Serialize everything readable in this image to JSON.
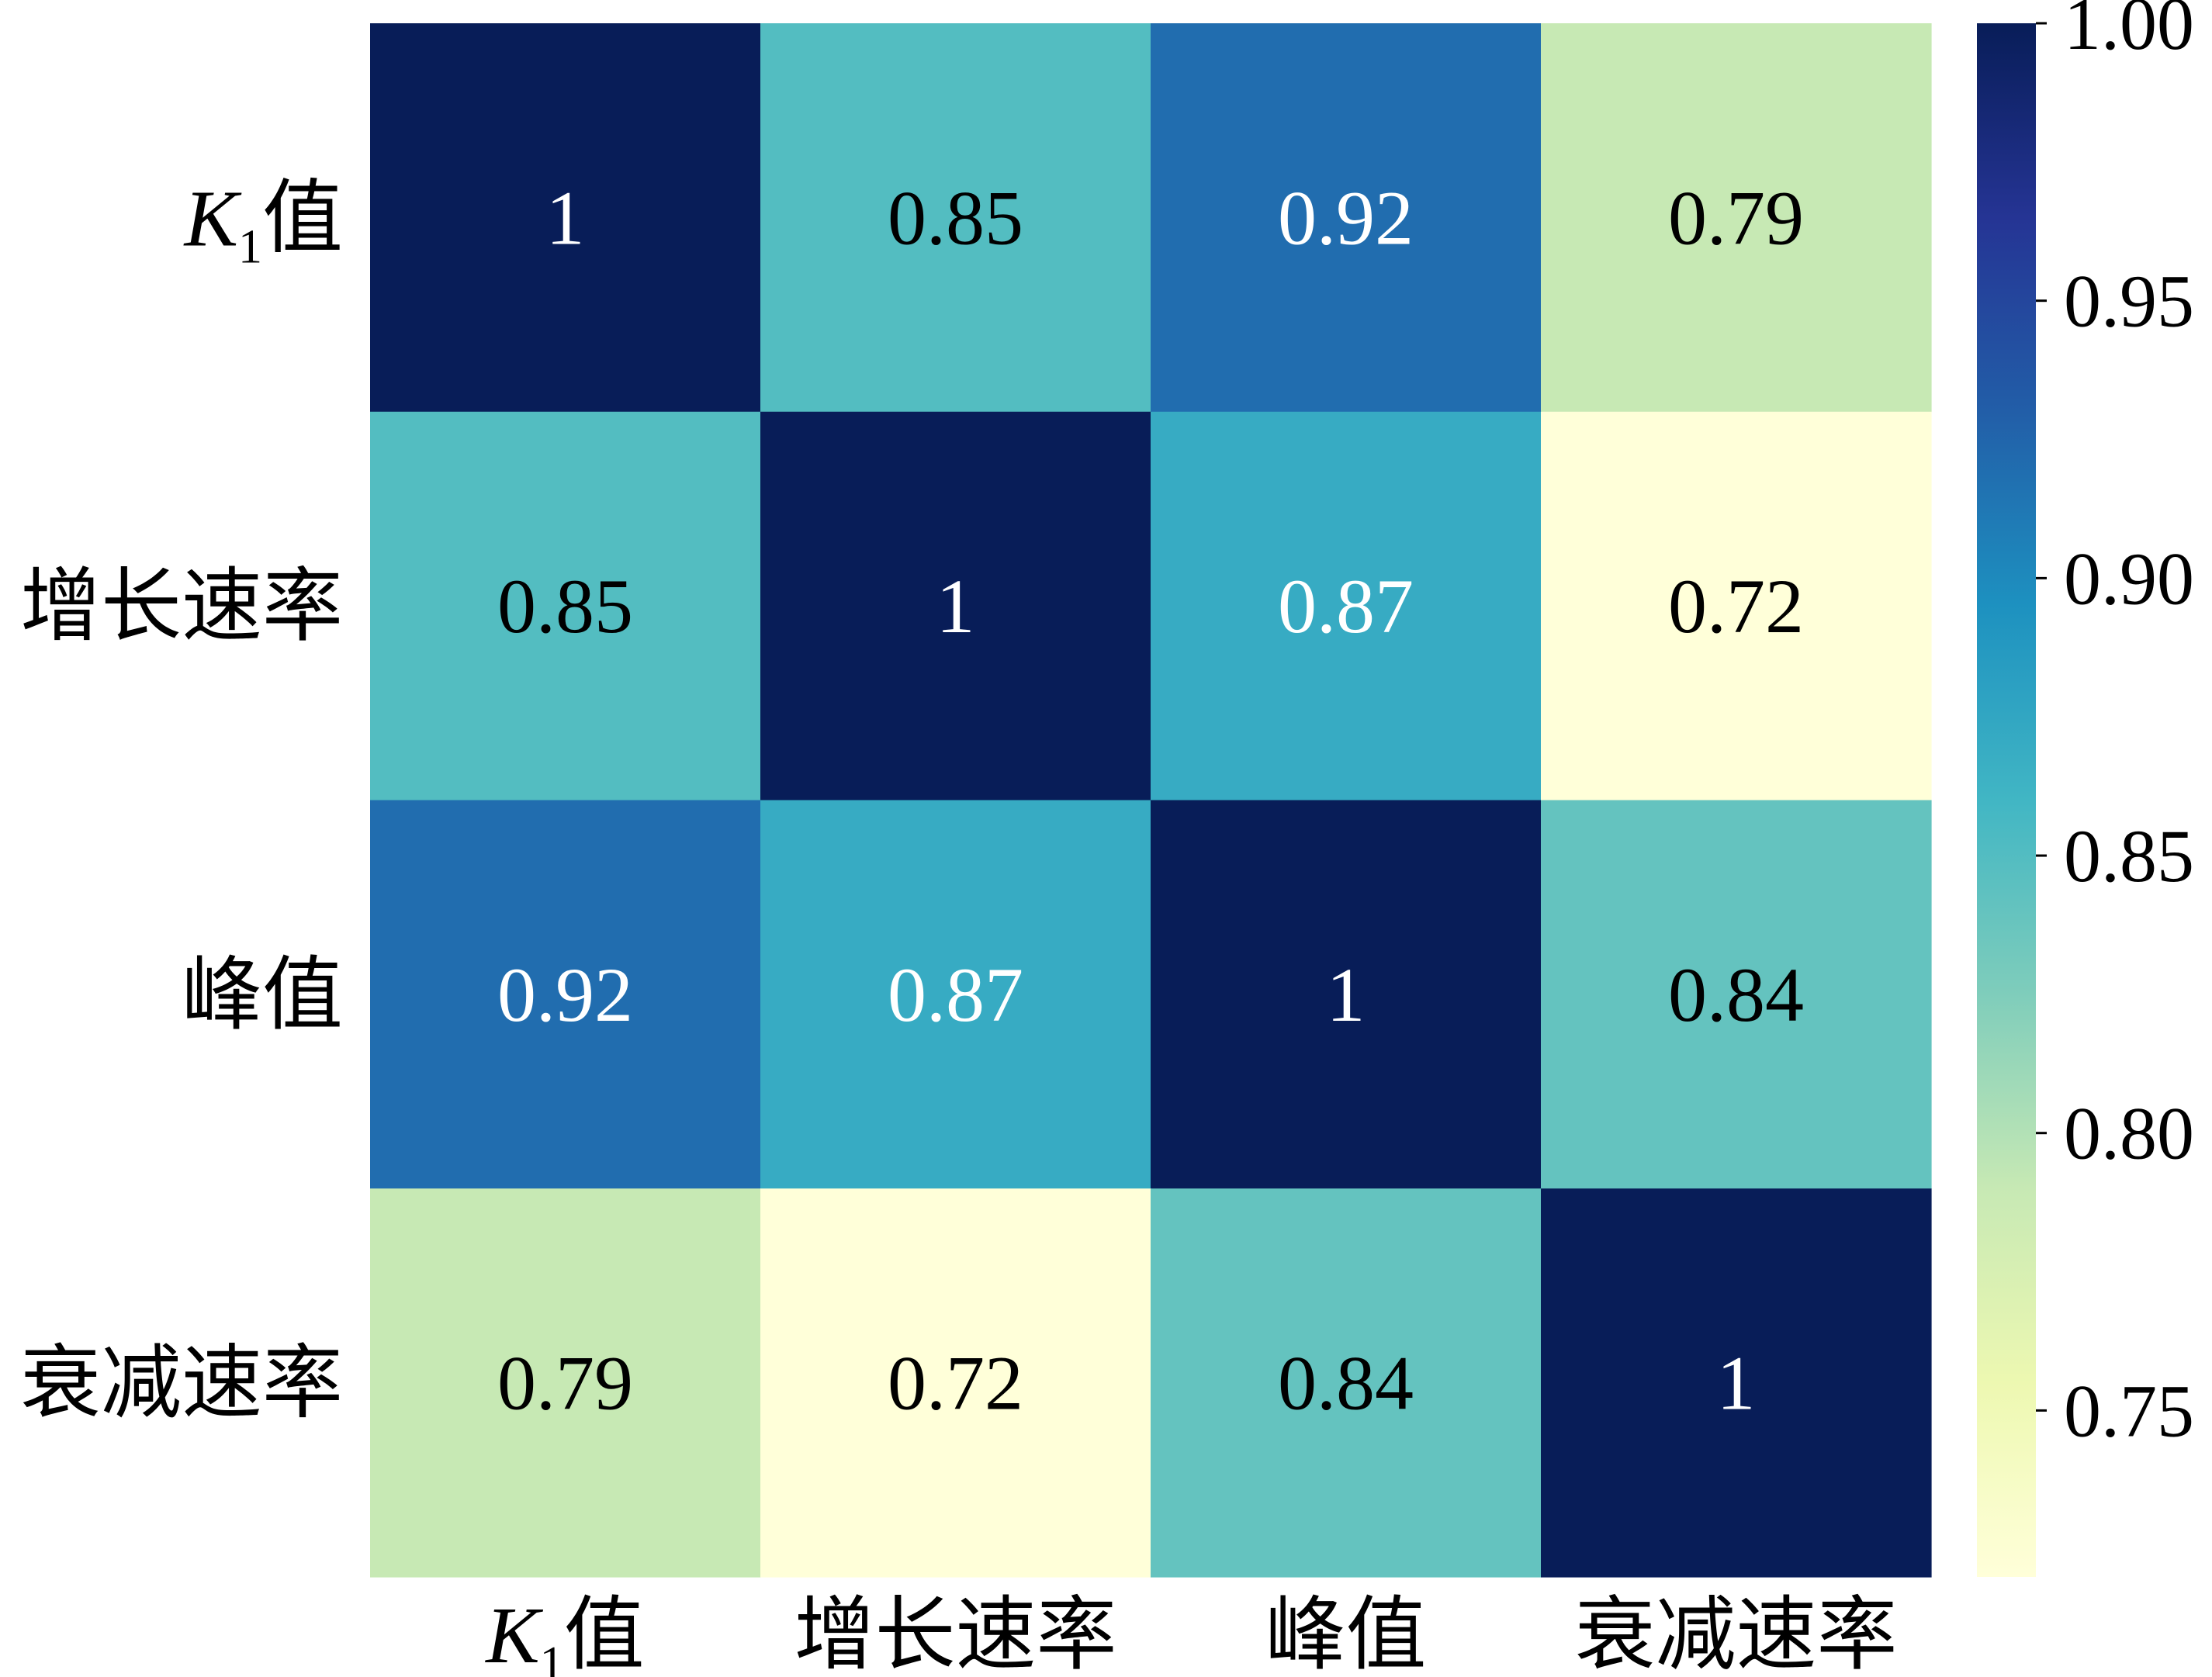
{
  "chart_data": {
    "type": "heatmap",
    "title": "",
    "xlabel": "",
    "ylabel": "",
    "row_labels": [
      {
        "main": "K",
        "sub": "1",
        "suffix": "值"
      },
      {
        "main": "增长速率",
        "sub": "",
        "suffix": ""
      },
      {
        "main": "峰值",
        "sub": "",
        "suffix": ""
      },
      {
        "main": "衰减速率",
        "sub": "",
        "suffix": ""
      }
    ],
    "col_labels": [
      {
        "main": "K",
        "sub": "1",
        "suffix": "值"
      },
      {
        "main": "增长速率",
        "sub": "",
        "suffix": ""
      },
      {
        "main": "峰值",
        "sub": "",
        "suffix": ""
      },
      {
        "main": "衰减速率",
        "sub": "",
        "suffix": ""
      }
    ],
    "values": [
      [
        1,
        0.85,
        0.92,
        0.79
      ],
      [
        0.85,
        1,
        0.87,
        0.72
      ],
      [
        0.92,
        0.87,
        1,
        0.84
      ],
      [
        0.79,
        0.72,
        0.84,
        1
      ]
    ],
    "cell_labels": [
      [
        "1",
        "0.85",
        "0.92",
        "0.79"
      ],
      [
        "0.85",
        "1",
        "0.87",
        "0.72"
      ],
      [
        "0.92",
        "0.87",
        "1",
        "0.84"
      ],
      [
        "0.79",
        "0.72",
        "0.84",
        "1"
      ]
    ],
    "colormap": "YlGnBu",
    "colorbar": {
      "vmin": 0.72,
      "vmax": 1.0,
      "ticks": [
        0.75,
        0.8,
        0.85,
        0.9,
        0.95,
        1.0
      ],
      "tick_labels": [
        "0.75",
        "0.80",
        "0.85",
        "0.90",
        "0.95",
        "1.00"
      ],
      "position": "right"
    },
    "grid": false
  }
}
